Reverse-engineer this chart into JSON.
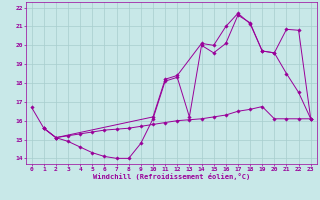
{
  "xlabel": "Windchill (Refroidissement éolien,°C)",
  "bg_color": "#c8e8e8",
  "grid_color": "#a8cece",
  "line_color": "#990099",
  "xlim": [
    -0.5,
    23.5
  ],
  "ylim": [
    13.7,
    22.3
  ],
  "yticks": [
    14,
    15,
    16,
    17,
    18,
    19,
    20,
    21,
    22
  ],
  "xticks": [
    0,
    1,
    2,
    3,
    4,
    5,
    6,
    7,
    8,
    9,
    10,
    11,
    12,
    13,
    14,
    15,
    16,
    17,
    18,
    19,
    20,
    21,
    22,
    23
  ],
  "line1_x": [
    0,
    1,
    2,
    3,
    4,
    5,
    6,
    7,
    8,
    9,
    10,
    11,
    12,
    13,
    14,
    15,
    16,
    17,
    18,
    19,
    20,
    21,
    22,
    23
  ],
  "line1_y": [
    16.7,
    15.6,
    15.1,
    14.9,
    14.6,
    14.3,
    14.1,
    14.0,
    14.0,
    14.8,
    16.1,
    18.1,
    18.3,
    16.2,
    20.0,
    19.6,
    20.1,
    21.6,
    21.2,
    19.7,
    19.6,
    18.5,
    17.5,
    16.1
  ],
  "line2_x": [
    1,
    2,
    3,
    4,
    5,
    6,
    7,
    8,
    9,
    10,
    11,
    12,
    13,
    14,
    15,
    16,
    17,
    18,
    19,
    20,
    21,
    22,
    23
  ],
  "line2_y": [
    15.6,
    15.1,
    15.2,
    15.3,
    15.4,
    15.5,
    15.55,
    15.6,
    15.7,
    15.8,
    15.9,
    16.0,
    16.05,
    16.1,
    16.2,
    16.3,
    16.5,
    16.6,
    16.75,
    16.1,
    16.1,
    16.1,
    16.1
  ],
  "line3_x": [
    1,
    2,
    10,
    11,
    12,
    14,
    15,
    16,
    17,
    18,
    19,
    20,
    21,
    22,
    23
  ],
  "line3_y": [
    15.6,
    15.1,
    16.2,
    18.2,
    18.4,
    20.1,
    20.0,
    21.0,
    21.7,
    21.15,
    19.7,
    19.6,
    20.85,
    20.8,
    16.1
  ]
}
